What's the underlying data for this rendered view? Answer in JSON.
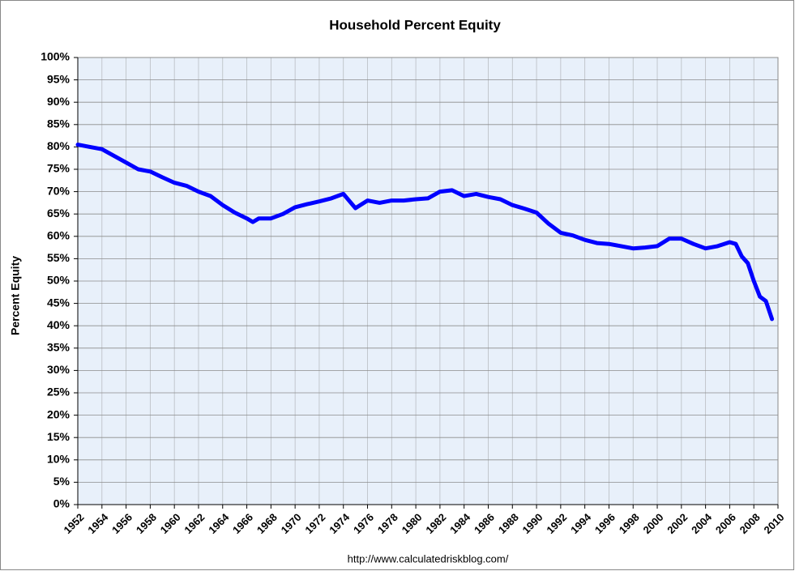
{
  "chart_data": {
    "type": "line",
    "title": "Household Percent  Equity",
    "y_label": "Percent Equity",
    "source": "http://www.calculatedriskblog.com/",
    "color": "#0000ff",
    "grid": true,
    "x": [
      1952,
      1953,
      1954,
      1955,
      1956,
      1957,
      1958,
      1959,
      1960,
      1961,
      1962,
      1963,
      1964,
      1965,
      1966,
      1966.5,
      1967,
      1968,
      1969,
      1970,
      1971,
      1972,
      1973,
      1974,
      1975,
      1976,
      1977,
      1978,
      1979,
      1980,
      1981,
      1982,
      1983,
      1984,
      1985,
      1986,
      1987,
      1988,
      1989,
      1990,
      1991,
      1992,
      1993,
      1994,
      1995,
      1996,
      1997,
      1998,
      1999,
      2000,
      2001,
      2002,
      2003,
      2004,
      2005,
      2006,
      2006.5,
      2007,
      2007.5,
      2008,
      2008.5,
      2009,
      2009.5
    ],
    "values": [
      80.5,
      80,
      79.5,
      78,
      76.5,
      75,
      74.5,
      73.2,
      72,
      71.3,
      70,
      69,
      67,
      65.3,
      64,
      63.2,
      64,
      64,
      65,
      66.5,
      67.2,
      67.8,
      68.5,
      69.5,
      66.3,
      68,
      67.5,
      68,
      68,
      68.3,
      68.5,
      70,
      70.3,
      69,
      69.5,
      68.8,
      68.3,
      67,
      66.2,
      65.3,
      62.8,
      60.8,
      60.2,
      59.2,
      58.5,
      58.3,
      57.8,
      57.3,
      57.5,
      57.8,
      59.5,
      59.5,
      58.3,
      57.3,
      57.8,
      58.7,
      58.3,
      55.5,
      54,
      50,
      46.5,
      45.5,
      41.5
    ],
    "xlim": [
      1952,
      2010
    ],
    "xticks": [
      1952,
      1954,
      1956,
      1958,
      1960,
      1962,
      1964,
      1966,
      1968,
      1970,
      1972,
      1974,
      1976,
      1978,
      1980,
      1982,
      1984,
      1986,
      1988,
      1990,
      1992,
      1994,
      1996,
      1998,
      2000,
      2002,
      2004,
      2006,
      2008,
      2010
    ],
    "ylim": [
      0,
      100
    ],
    "yticks": [
      {
        "value": 0,
        "label": "0%"
      },
      {
        "value": 5,
        "label": "5%"
      },
      {
        "value": 10,
        "label": "10%"
      },
      {
        "value": 15,
        "label": "15%"
      },
      {
        "value": 20,
        "label": "20%"
      },
      {
        "value": 25,
        "label": "25%"
      },
      {
        "value": 30,
        "label": "30%"
      },
      {
        "value": 35,
        "label": "35%"
      },
      {
        "value": 40,
        "label": "40%"
      },
      {
        "value": 45,
        "label": "45%"
      },
      {
        "value": 50,
        "label": "50%"
      },
      {
        "value": 55,
        "label": "55%"
      },
      {
        "value": 60,
        "label": "60%"
      },
      {
        "value": 65,
        "label": "65%"
      },
      {
        "value": 70,
        "label": "70%"
      },
      {
        "value": 75,
        "label": "75%"
      },
      {
        "value": 80,
        "label": "80%"
      },
      {
        "value": 85,
        "label": "85%"
      },
      {
        "value": 90,
        "label": "90%"
      },
      {
        "value": 95,
        "label": "95%"
      },
      {
        "value": 100,
        "label": "100%"
      }
    ]
  }
}
